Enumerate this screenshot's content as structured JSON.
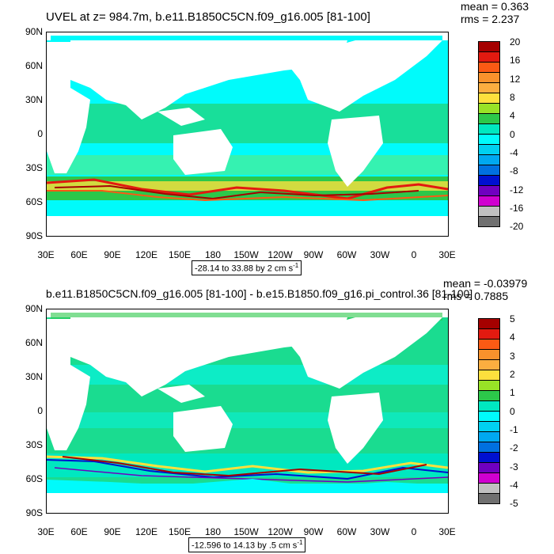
{
  "panels": [
    {
      "title": "UVEL at z= 984.7m, b.e11.B1850C5CN.f09_g16.005 [81-100]",
      "mean": "mean = 0.363",
      "rms": "rms = 2.237",
      "info_text": "-28.14 to 33.88 by 2 cm s",
      "info_unit_exp": "-1",
      "colorbar_labels": [
        "20",
        "16",
        "12",
        "8",
        "4",
        "0",
        "-4",
        "-8",
        "-12",
        "-16",
        "-20"
      ]
    },
    {
      "title": "b.e11.B1850C5CN.f09_g16.005 [81-100] - b.e15.B1850.f09_g16.pi_control.36 [81-100]",
      "mean": "mean = -0.03979",
      "rms": "rms = 0.7885",
      "info_text": "-12.596 to 14.13 by .5 cm s",
      "info_unit_exp": "-1",
      "colorbar_labels": [
        "5",
        "4",
        "3",
        "2",
        "1",
        "0",
        "-1",
        "-2",
        "-3",
        "-4",
        "-5"
      ]
    }
  ],
  "lat_labels": [
    "90N",
    "60N",
    "30N",
    "0",
    "30S",
    "60S",
    "90S"
  ],
  "lon_labels": [
    "30E",
    "60E",
    "90E",
    "120E",
    "150E",
    "180",
    "150W",
    "120W",
    "90W",
    "60W",
    "30W",
    "0",
    "30E"
  ],
  "colorbar_colors": [
    "#a50000",
    "#e21a10",
    "#fb5a14",
    "#f9922c",
    "#fcae40",
    "#fde03d",
    "#98e227",
    "#2cc84a",
    "#00e8c0",
    "#00fbfb",
    "#00d0f0",
    "#00a8f0",
    "#0070e0",
    "#0010d0",
    "#7000c0",
    "#d000d0",
    "#c0c0c0",
    "#707070"
  ],
  "chart_data": {
    "type": "heatmap",
    "projection": "cylindrical equidistant",
    "lon_range": [
      "30E",
      "30E"
    ],
    "lat_range": [
      "90S",
      "90N"
    ],
    "maps": [
      {
        "variable": "UVEL at z= 984.7m",
        "units": "cm s-1",
        "contour_min": -28.14,
        "contour_max": 33.88,
        "contour_interval": 2,
        "mean": 0.363,
        "rms": 2.237,
        "colorbar_levels": [
          20,
          18,
          16,
          14,
          12,
          10,
          8,
          6,
          4,
          2,
          0,
          -2,
          -4,
          -6,
          -8,
          -10,
          -12,
          -14,
          -16,
          -18,
          -20
        ]
      },
      {
        "variable": "difference",
        "units": "cm s-1",
        "contour_min": -12.596,
        "contour_max": 14.13,
        "contour_interval": 0.5,
        "mean": -0.03979,
        "rms": 0.7885,
        "colorbar_levels": [
          5,
          4.5,
          4,
          3.5,
          3,
          2.5,
          2,
          1.5,
          1,
          0.5,
          0,
          -0.5,
          -1,
          -1.5,
          -2,
          -2.5,
          -3,
          -3.5,
          -4,
          -4.5,
          -5
        ]
      }
    ]
  }
}
